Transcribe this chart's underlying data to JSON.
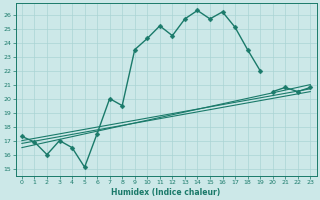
{
  "xlabel": "Humidex (Indice chaleur)",
  "bg_color": "#cce8e8",
  "grid_color": "#aad4d4",
  "line_color": "#1a7a6a",
  "xlim": [
    -0.5,
    23.5
  ],
  "ylim": [
    14.5,
    26.8
  ],
  "xticks": [
    0,
    1,
    2,
    3,
    4,
    5,
    6,
    7,
    8,
    9,
    10,
    11,
    12,
    13,
    14,
    15,
    16,
    17,
    18,
    19,
    20,
    21,
    22,
    23
  ],
  "yticks": [
    15,
    16,
    17,
    18,
    19,
    20,
    21,
    22,
    23,
    24,
    25,
    26
  ],
  "main_series": {
    "x": [
      0,
      1,
      2,
      3,
      4,
      5,
      6,
      7,
      8,
      9,
      10,
      11,
      12,
      13,
      14,
      15,
      16,
      17,
      18,
      19
    ],
    "y": [
      17.3,
      16.9,
      16.0,
      17.0,
      16.5,
      15.1,
      17.5,
      20.0,
      19.5,
      23.5,
      24.3,
      25.2,
      24.5,
      25.7,
      26.3,
      25.7,
      26.2,
      25.1,
      23.5,
      22.0
    ],
    "marker": "D",
    "markersize": 2.5,
    "linewidth": 1.0
  },
  "reg_lines": [
    {
      "x": [
        0,
        23
      ],
      "y": [
        17.0,
        20.7
      ]
    },
    {
      "x": [
        0,
        23
      ],
      "y": [
        16.8,
        20.5
      ]
    },
    {
      "x": [
        0,
        23
      ],
      "y": [
        16.5,
        21.0
      ]
    }
  ],
  "reg_linewidth": 0.8,
  "extra_point_x": [
    20,
    21,
    22,
    23
  ],
  "extra_point_y": [
    20.5,
    20.8,
    20.5,
    20.8
  ]
}
